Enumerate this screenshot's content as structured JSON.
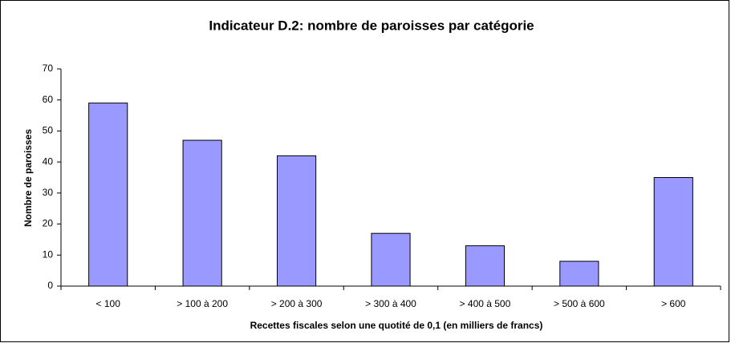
{
  "chart_data": {
    "type": "bar",
    "title": "Indicateur D.2: nombre de paroisses par catégorie",
    "x_label": "Recettes fiscales selon une quotité de 0,1 (en milliers de francs)",
    "y_label": "Nombre de paroisses",
    "categories": [
      "< 100",
      "> 100 à 200",
      "> 200 à 300",
      "> 300 à 400",
      "> 400 à 500",
      "> 500 à 600",
      "> 600"
    ],
    "values": [
      59,
      47,
      42,
      17,
      13,
      8,
      35
    ],
    "color": "#9999ff",
    "ylim": [
      0,
      70
    ],
    "yticks": [
      0,
      10,
      20,
      30,
      40,
      50,
      60,
      70
    ],
    "grid": false
  }
}
